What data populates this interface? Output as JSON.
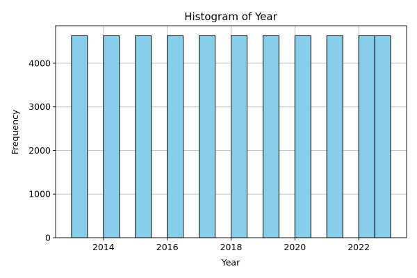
{
  "chart_data": {
    "type": "bar",
    "subtype": "histogram",
    "title": "Histogram of Year",
    "xlabel": "Year",
    "ylabel": "Frequency",
    "bins": [
      {
        "x0": 2013.0,
        "x1": 2013.5,
        "value": 4630
      },
      {
        "x0": 2014.0,
        "x1": 2014.5,
        "value": 4630
      },
      {
        "x0": 2015.0,
        "x1": 2015.5,
        "value": 4630
      },
      {
        "x0": 2016.0,
        "x1": 2016.5,
        "value": 4630
      },
      {
        "x0": 2017.0,
        "x1": 2017.5,
        "value": 4630
      },
      {
        "x0": 2018.0,
        "x1": 2018.5,
        "value": 4630
      },
      {
        "x0": 2019.0,
        "x1": 2019.5,
        "value": 4630
      },
      {
        "x0": 2020.0,
        "x1": 2020.5,
        "value": 4630
      },
      {
        "x0": 2021.0,
        "x1": 2021.5,
        "value": 4630
      },
      {
        "x0": 2022.0,
        "x1": 2022.5,
        "value": 4630
      },
      {
        "x0": 2022.5,
        "x1": 2023.0,
        "value": 4630
      }
    ],
    "xlim": [
      2012.5,
      2023.5
    ],
    "ylim": [
      0,
      4860
    ],
    "xticks": [
      2014,
      2016,
      2018,
      2020,
      2022
    ],
    "yticks": [
      0,
      1000,
      2000,
      3000,
      4000
    ],
    "grid": true,
    "colors": {
      "bar_fill": "#87ceeb",
      "bar_edge": "#000000",
      "grid": "#b0b0b0"
    }
  }
}
